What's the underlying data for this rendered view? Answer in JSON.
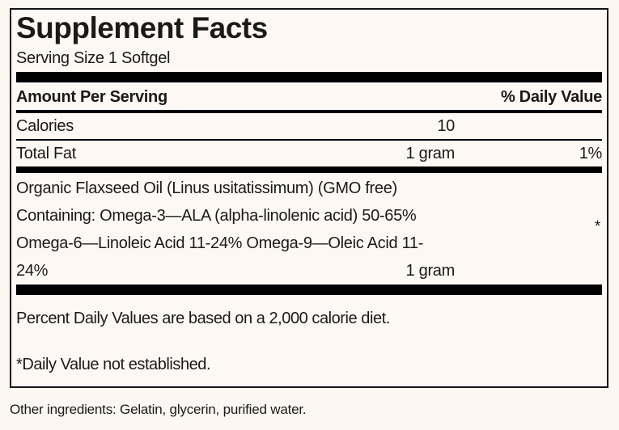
{
  "label": {
    "title": "Supplement Facts",
    "serving_size": "Serving Size 1 Softgel",
    "columns": {
      "amount_header": "Amount Per Serving",
      "dv_header": "% Daily Value"
    },
    "rows": [
      {
        "name": "Calories",
        "amount": "10",
        "dv": ""
      },
      {
        "name": "Total Fat",
        "amount": "1 gram",
        "dv": "1%"
      }
    ],
    "ingredient": {
      "lines": [
        "Organic Flaxseed Oil (Linus usitatissimum) (GMO free)",
        "Containing: Omega-3—ALA (alpha-linolenic acid) 50-65%",
        "Omega-6—Linoleic Acid 11-24% Omega-9—Oleic Acid 11-",
        "24%"
      ],
      "amount": "1 gram",
      "dv": "*"
    },
    "footnotes": [
      "Percent Daily Values are based on a 2,000 calorie diet.",
      "*Daily Value not established."
    ]
  },
  "other_ingredients": "Other ingredients: Gelatin, glycerin, purified water.",
  "colors": {
    "background": "#fdf8f3",
    "text": "#1a1a1a",
    "rule": "#000000"
  }
}
